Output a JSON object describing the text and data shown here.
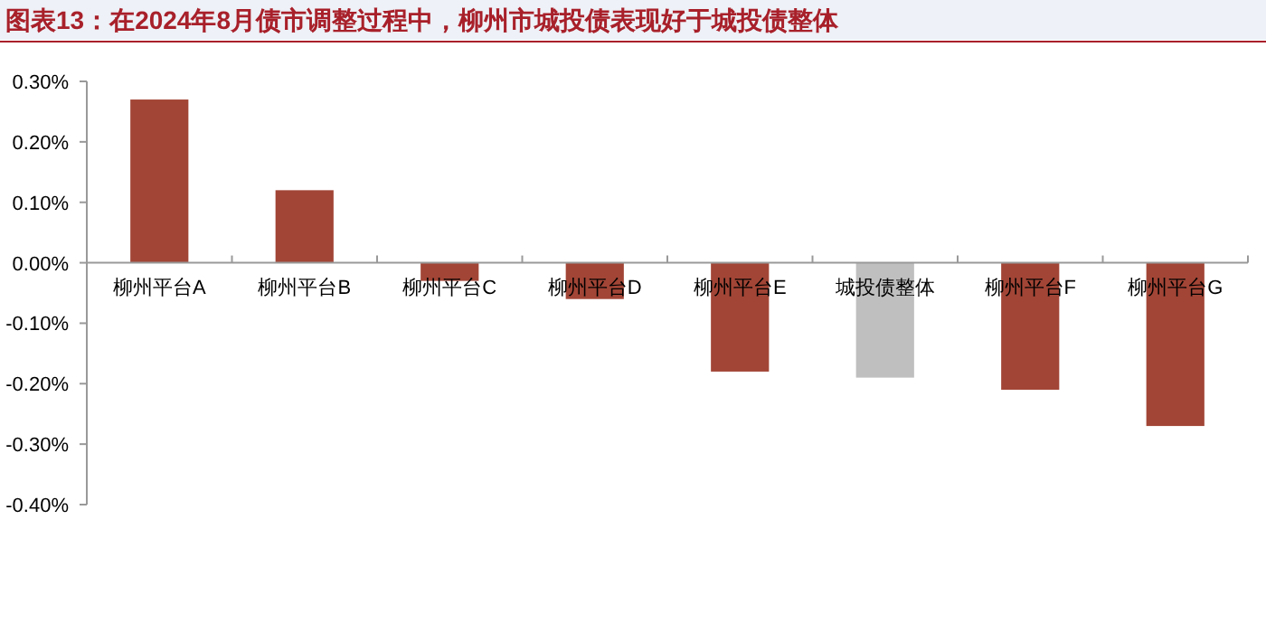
{
  "chart_data": {
    "type": "bar",
    "title": "图表13：在2024年8月债市调整过程中，柳州市城投债表现好于城投债整体",
    "categories": [
      "柳州平台A",
      "柳州平台B",
      "柳州平台C",
      "柳州平台D",
      "柳州平台E",
      "城投债整体",
      "柳州平台F",
      "柳州平台G"
    ],
    "values": [
      0.27,
      0.12,
      -0.03,
      -0.06,
      -0.18,
      -0.19,
      -0.21,
      -0.27
    ],
    "colors": [
      "#a24536",
      "#a24536",
      "#a24536",
      "#a24536",
      "#a24536",
      "#bfbfbf",
      "#a24536",
      "#a24536"
    ],
    "ylim": [
      -0.4,
      0.3
    ],
    "yticks": [
      {
        "value": 0.3,
        "label": "0.30%"
      },
      {
        "value": 0.2,
        "label": "0.20%"
      },
      {
        "value": 0.1,
        "label": "0.10%"
      },
      {
        "value": 0,
        "label": "0.00%"
      },
      {
        "value": -0.1,
        "label": "-0.10%"
      },
      {
        "value": -0.2,
        "label": "-0.20%"
      },
      {
        "value": -0.3,
        "label": "-0.30%"
      },
      {
        "value": -0.4,
        "label": "-0.40%"
      }
    ]
  }
}
